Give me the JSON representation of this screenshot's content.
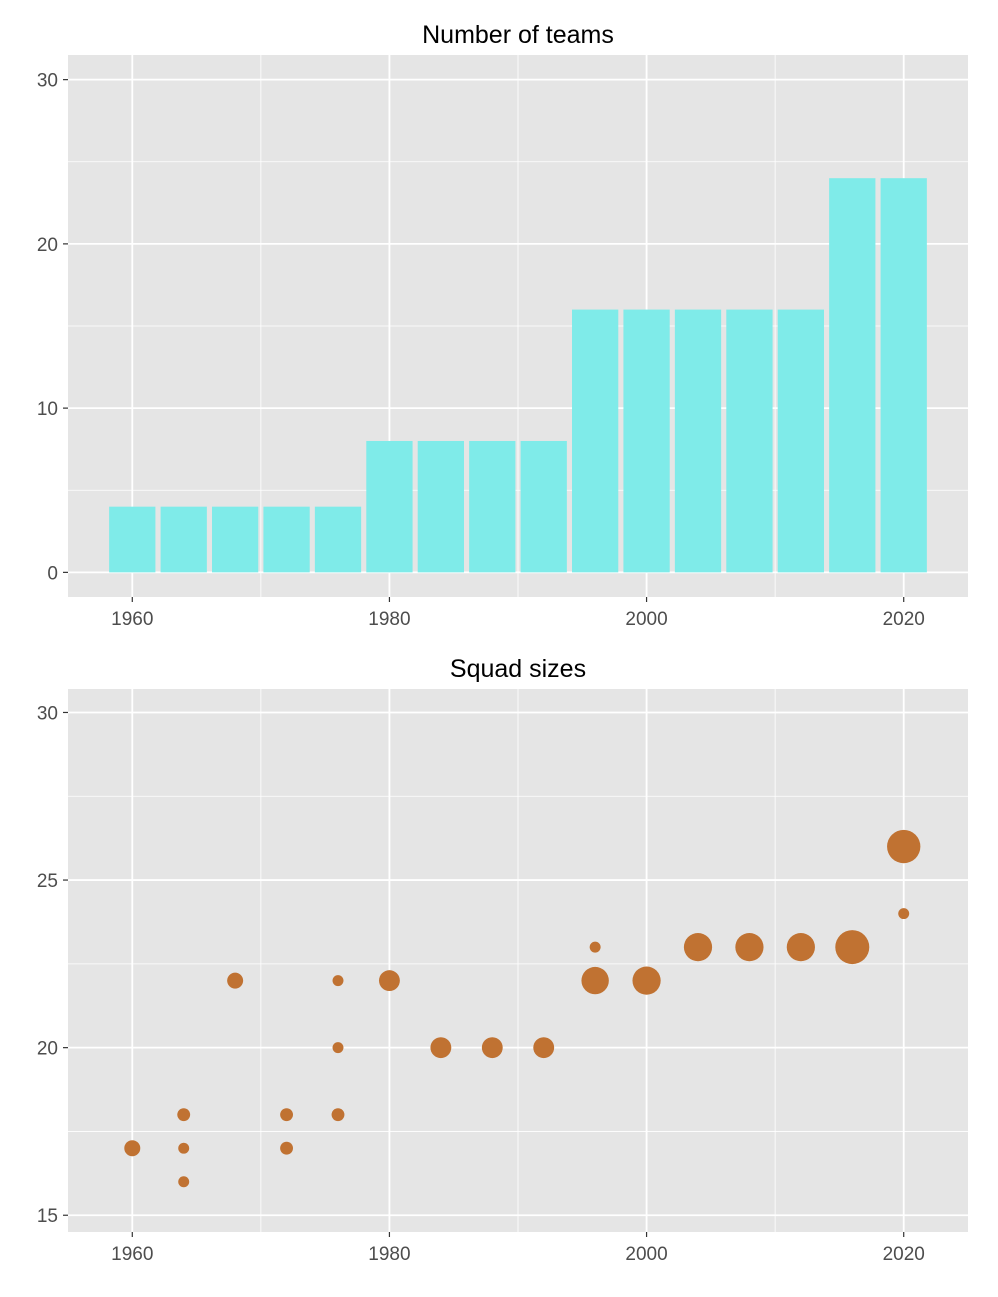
{
  "chart_data": [
    {
      "type": "bar",
      "title": "Number of teams",
      "xlabel": "",
      "ylabel": "",
      "x": [
        1960,
        1964,
        1968,
        1972,
        1976,
        1980,
        1984,
        1988,
        1992,
        1996,
        2000,
        2004,
        2008,
        2012,
        2016,
        2020
      ],
      "values": [
        4,
        4,
        4,
        4,
        4,
        8,
        8,
        8,
        8,
        16,
        16,
        16,
        16,
        16,
        24,
        24
      ],
      "xticks": [
        1960,
        1980,
        2000,
        2020
      ],
      "yticks": [
        0,
        10,
        20,
        30
      ],
      "ylim": [
        -1.5,
        31.5
      ],
      "xlim": [
        1955,
        2025
      ],
      "color": "#7FEBE9",
      "grid": true
    },
    {
      "type": "scatter",
      "title": "Squad sizes",
      "xlabel": "",
      "ylabel": "",
      "points": [
        {
          "x": 1960,
          "y": 17,
          "n": 4
        },
        {
          "x": 1964,
          "y": 18,
          "n": 2
        },
        {
          "x": 1964,
          "y": 17,
          "n": 1
        },
        {
          "x": 1964,
          "y": 16,
          "n": 1
        },
        {
          "x": 1968,
          "y": 22,
          "n": 4
        },
        {
          "x": 1972,
          "y": 18,
          "n": 2
        },
        {
          "x": 1972,
          "y": 17,
          "n": 2
        },
        {
          "x": 1976,
          "y": 22,
          "n": 1
        },
        {
          "x": 1976,
          "y": 20,
          "n": 1
        },
        {
          "x": 1976,
          "y": 18,
          "n": 2
        },
        {
          "x": 1980,
          "y": 22,
          "n": 8
        },
        {
          "x": 1984,
          "y": 20,
          "n": 8
        },
        {
          "x": 1988,
          "y": 20,
          "n": 8
        },
        {
          "x": 1992,
          "y": 20,
          "n": 8
        },
        {
          "x": 1996,
          "y": 23,
          "n": 1
        },
        {
          "x": 1996,
          "y": 22,
          "n": 15
        },
        {
          "x": 2000,
          "y": 22,
          "n": 16
        },
        {
          "x": 2004,
          "y": 23,
          "n": 16
        },
        {
          "x": 2008,
          "y": 23,
          "n": 16
        },
        {
          "x": 2012,
          "y": 23,
          "n": 16
        },
        {
          "x": 2016,
          "y": 23,
          "n": 24
        },
        {
          "x": 2020,
          "y": 26,
          "n": 23
        },
        {
          "x": 2020,
          "y": 24,
          "n": 1
        }
      ],
      "xticks": [
        1960,
        1980,
        2000,
        2020
      ],
      "yticks": [
        15,
        20,
        25,
        30
      ],
      "ylim": [
        14.5,
        30.7
      ],
      "xlim": [
        1955,
        2025
      ],
      "color": "#C07232",
      "grid": true
    }
  ]
}
